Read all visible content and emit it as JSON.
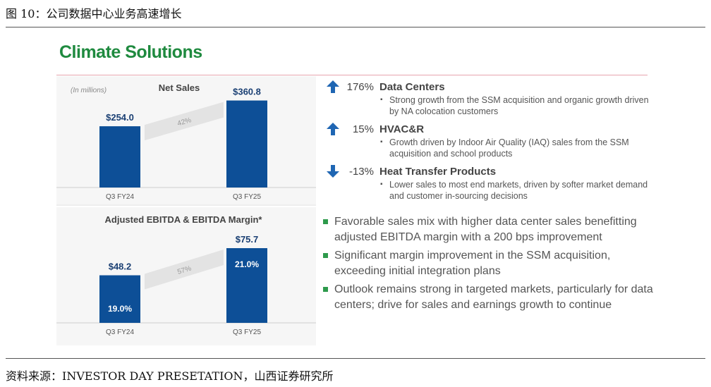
{
  "caption": "图 10：公司数据中心业务高速增长",
  "source": "资料来源：INVESTOR DAY PRESETATION，山西证券研究所",
  "slide_title": "Climate Solutions",
  "colors": {
    "bar": "#0d4f97",
    "title": "#1f8a3f",
    "up": "#1f66b3",
    "down": "#1f66b3",
    "bullet": "#2e9a4c"
  },
  "chart_data": [
    {
      "type": "bar",
      "title": "Net Sales",
      "unit_note": "(In millions)",
      "categories": [
        "Q3 FY24",
        "Q3 FY25"
      ],
      "values": [
        254.0,
        360.8
      ],
      "value_labels": [
        "$254.0",
        "$360.8"
      ],
      "growth_label": "42%",
      "ylim": [
        0,
        380
      ]
    },
    {
      "type": "bar",
      "title": "Adjusted EBITDA & EBITDA Margin*",
      "categories": [
        "Q3 FY24",
        "Q3 FY25"
      ],
      "values": [
        48.2,
        75.7
      ],
      "value_labels": [
        "$48.2",
        "$75.7"
      ],
      "margins": [
        "19.0%",
        "21.0%"
      ],
      "growth_label": "57%",
      "ylim": [
        0,
        80
      ]
    }
  ],
  "segments": [
    {
      "direction": "up",
      "pct": "176%",
      "name": "Data Centers",
      "detail": "Strong growth from the SSM acquisition and organic growth driven by NA colocation customers"
    },
    {
      "direction": "up",
      "pct": "15%",
      "name": "HVAC&R",
      "detail": "Growth driven by Indoor Air Quality (IAQ) sales from the SSM acquisition and school products"
    },
    {
      "direction": "down",
      "pct": "-13%",
      "name": "Heat Transfer Products",
      "detail": "Lower sales to most end markets, driven by softer market demand and customer in-sourcing decisions"
    }
  ],
  "highlights": [
    "Favorable sales mix with higher data center sales benefitting adjusted EBITDA margin with a 200 bps improvement",
    "Significant margin improvement in the SSM acquisition, exceeding initial integration plans",
    "Outlook remains strong in targeted markets, particularly for data centers; drive for sales and earnings growth to continue"
  ]
}
